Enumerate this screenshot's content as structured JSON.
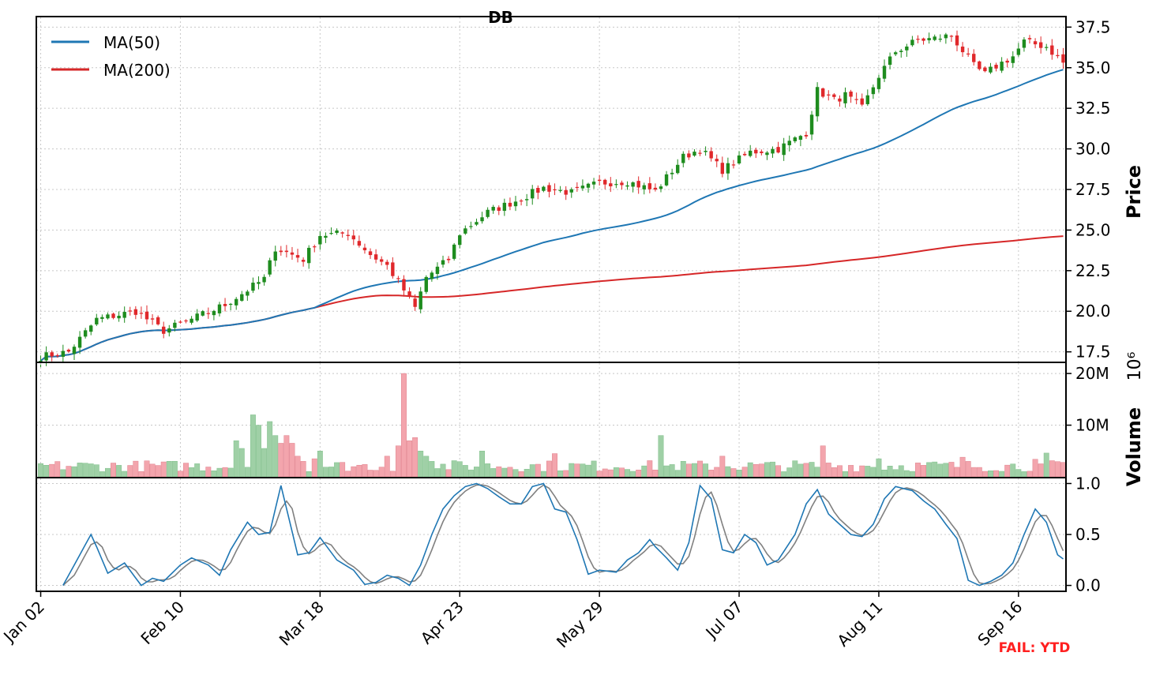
{
  "chart_data": {
    "type": "candlestick",
    "title": "DB",
    "footer_note": "FAIL: YTD",
    "legend": {
      "placement": "top-left",
      "entries": [
        "MA(50)",
        "MA(200)"
      ]
    },
    "colors": {
      "up": "#1e8c1e",
      "down": "#e0282b",
      "vol_up": "#9fd0a6",
      "vol_down": "#f3a5ad",
      "ma50": "#1f77b4",
      "ma200": "#d62728",
      "k": "#1f77b4",
      "d": "#808080",
      "grid": "#c8c8c8"
    },
    "x_axis": {
      "tick_labels": [
        "Jan 02",
        "Feb 10",
        "Mar 18",
        "Apr 23",
        "May 29",
        "Jul 07",
        "Aug 11",
        "Sep 16"
      ],
      "tick_index": [
        0,
        25,
        50,
        75,
        100,
        125,
        150,
        175
      ],
      "n_days": 184,
      "grid": true
    },
    "price_panel": {
      "ylabel": "Price",
      "ylim": [
        16.9,
        38.1
      ],
      "yticks": [
        17.5,
        20.0,
        22.5,
        25.0,
        27.5,
        30.0,
        32.5,
        35.0,
        37.5
      ],
      "ytick_labels": [
        "17.5",
        "20.0",
        "22.5",
        "25.0",
        "27.5",
        "30.0",
        "32.5",
        "35.0",
        "37.5"
      ],
      "close_anchors": [
        [
          0,
          17.2
        ],
        [
          5,
          17.5
        ],
        [
          10,
          19.5
        ],
        [
          17,
          20.0
        ],
        [
          22,
          18.8
        ],
        [
          27,
          19.5
        ],
        [
          33,
          20.4
        ],
        [
          40,
          22.0
        ],
        [
          42,
          23.9
        ],
        [
          47,
          23.2
        ],
        [
          50,
          24.7
        ],
        [
          55,
          24.8
        ],
        [
          59,
          23.5
        ],
        [
          62,
          22.8
        ],
        [
          65,
          21.3
        ],
        [
          67,
          20.2
        ],
        [
          69,
          22.1
        ],
        [
          73,
          23.2
        ],
        [
          75,
          24.8
        ],
        [
          80,
          26.1
        ],
        [
          85,
          26.8
        ],
        [
          90,
          27.6
        ],
        [
          95,
          27.3
        ],
        [
          100,
          27.9
        ],
        [
          105,
          28.0
        ],
        [
          110,
          27.4
        ],
        [
          115,
          29.5
        ],
        [
          118,
          30.0
        ],
        [
          122,
          28.7
        ],
        [
          127,
          29.8
        ],
        [
          132,
          30.0
        ],
        [
          137,
          31.0
        ],
        [
          139,
          33.6
        ],
        [
          142,
          33.0
        ],
        [
          144,
          33.3
        ],
        [
          147,
          32.5
        ],
        [
          150,
          34.5
        ],
        [
          153,
          36.0
        ],
        [
          157,
          36.7
        ],
        [
          160,
          36.8
        ],
        [
          163,
          37.0
        ],
        [
          167,
          35.1
        ],
        [
          169,
          34.6
        ],
        [
          171,
          35.1
        ],
        [
          174,
          35.7
        ],
        [
          176,
          36.6
        ],
        [
          180,
          36.3
        ],
        [
          183,
          35.3
        ]
      ]
    },
    "volume_panel": {
      "ylabel": "Volume",
      "ylim": [
        0,
        22000000
      ],
      "yticks": [
        10000000,
        20000000
      ],
      "ytick_labels": [
        "10M",
        "20M"
      ],
      "exponent_label": "10⁶",
      "spikes": [
        [
          35,
          7000000
        ],
        [
          36,
          5500000
        ],
        [
          38,
          12000000
        ],
        [
          39,
          10000000
        ],
        [
          40,
          5500000
        ],
        [
          41,
          10700000
        ],
        [
          42,
          8000000
        ],
        [
          43,
          6500000
        ],
        [
          44,
          8000000
        ],
        [
          45,
          6500000
        ],
        [
          46,
          4000000
        ],
        [
          47,
          3000000
        ],
        [
          49,
          3500000
        ],
        [
          50,
          5000000
        ],
        [
          62,
          4000000
        ],
        [
          64,
          6000000
        ],
        [
          65,
          20000000
        ],
        [
          66,
          7000000
        ],
        [
          67,
          7600000
        ],
        [
          68,
          5000000
        ],
        [
          69,
          4000000
        ],
        [
          70,
          3000000
        ],
        [
          79,
          5000000
        ],
        [
          92,
          4500000
        ],
        [
          111,
          8000000
        ],
        [
          122,
          4000000
        ],
        [
          140,
          6000000
        ],
        [
          150,
          3500000
        ],
        [
          165,
          3800000
        ],
        [
          178,
          3400000
        ],
        [
          180,
          4600000
        ]
      ]
    },
    "stochastic_panel": {
      "ylim": [
        -0.05,
        1.05
      ],
      "yticks": [
        0.0,
        0.5,
        1.0
      ],
      "ytick_labels": [
        "0.0",
        "0.5",
        "1.0"
      ],
      "k_anchors": [
        [
          4,
          0.0
        ],
        [
          6,
          0.2
        ],
        [
          9,
          0.5
        ],
        [
          10,
          0.38
        ],
        [
          12,
          0.12
        ],
        [
          15,
          0.22
        ],
        [
          18,
          0.0
        ],
        [
          20,
          0.07
        ],
        [
          22,
          0.04
        ],
        [
          25,
          0.2
        ],
        [
          27,
          0.27
        ],
        [
          30,
          0.2
        ],
        [
          32,
          0.1
        ],
        [
          34,
          0.35
        ],
        [
          37,
          0.62
        ],
        [
          39,
          0.5
        ],
        [
          41,
          0.52
        ],
        [
          43,
          0.98
        ],
        [
          46,
          0.3
        ],
        [
          48,
          0.32
        ],
        [
          50,
          0.47
        ],
        [
          53,
          0.25
        ],
        [
          56,
          0.15
        ],
        [
          58,
          0.01
        ],
        [
          60,
          0.03
        ],
        [
          62,
          0.1
        ],
        [
          64,
          0.07
        ],
        [
          66,
          0.0
        ],
        [
          68,
          0.2
        ],
        [
          70,
          0.5
        ],
        [
          72,
          0.75
        ],
        [
          74,
          0.88
        ],
        [
          76,
          0.97
        ],
        [
          78,
          1.0
        ],
        [
          80,
          0.95
        ],
        [
          82,
          0.87
        ],
        [
          84,
          0.8
        ],
        [
          86,
          0.8
        ],
        [
          88,
          0.97
        ],
        [
          90,
          1.0
        ],
        [
          92,
          0.75
        ],
        [
          94,
          0.72
        ],
        [
          96,
          0.45
        ],
        [
          98,
          0.11
        ],
        [
          100,
          0.15
        ],
        [
          103,
          0.13
        ],
        [
          105,
          0.25
        ],
        [
          107,
          0.32
        ],
        [
          109,
          0.45
        ],
        [
          110,
          0.38
        ],
        [
          112,
          0.27
        ],
        [
          114,
          0.15
        ],
        [
          116,
          0.42
        ],
        [
          118,
          0.98
        ],
        [
          120,
          0.85
        ],
        [
          122,
          0.35
        ],
        [
          124,
          0.32
        ],
        [
          126,
          0.5
        ],
        [
          128,
          0.42
        ],
        [
          130,
          0.2
        ],
        [
          132,
          0.25
        ],
        [
          135,
          0.5
        ],
        [
          137,
          0.8
        ],
        [
          139,
          0.94
        ],
        [
          141,
          0.7
        ],
        [
          143,
          0.6
        ],
        [
          145,
          0.5
        ],
        [
          147,
          0.48
        ],
        [
          149,
          0.6
        ],
        [
          151,
          0.85
        ],
        [
          153,
          0.97
        ],
        [
          156,
          0.93
        ],
        [
          158,
          0.83
        ],
        [
          160,
          0.75
        ],
        [
          162,
          0.6
        ],
        [
          164,
          0.46
        ],
        [
          166,
          0.05
        ],
        [
          168,
          0.0
        ],
        [
          170,
          0.04
        ],
        [
          172,
          0.1
        ],
        [
          174,
          0.22
        ],
        [
          176,
          0.5
        ],
        [
          178,
          0.75
        ],
        [
          180,
          0.62
        ],
        [
          182,
          0.3
        ],
        [
          184,
          0.22
        ],
        [
          186,
          0.06
        ]
      ],
      "d_lag": 2
    }
  }
}
